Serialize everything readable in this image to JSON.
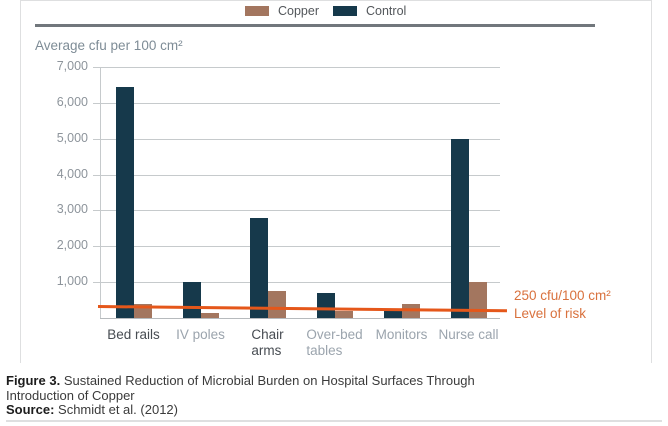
{
  "chart_data": {
    "type": "bar",
    "axis_title": "Average cfu per 100 cm²",
    "categories": [
      "Bed rails",
      "IV poles",
      "Chair\narms",
      "Over-bed\ntables",
      "Monitors",
      "Nurse call"
    ],
    "category_emphasis": [
      "dark",
      "light",
      "dark",
      "light",
      "light",
      "light"
    ],
    "series": [
      {
        "name": "Control",
        "color": "#16394b",
        "values": [
          6450,
          1000,
          2800,
          700,
          200,
          5000
        ]
      },
      {
        "name": "Copper",
        "color": "#a3765f",
        "values": [
          400,
          150,
          750,
          200,
          400,
          1000
        ]
      }
    ],
    "legend": [
      {
        "label": "Copper",
        "color": "#a3765f"
      },
      {
        "label": "Control",
        "color": "#16394b"
      }
    ],
    "legend_position": "top",
    "grid": true,
    "ylim": [
      0,
      7000
    ],
    "y_ticks": [
      {
        "value": 7000,
        "label": "7,000"
      },
      {
        "value": 6000,
        "label": "6,000"
      },
      {
        "value": 5000,
        "label": "5,000"
      },
      {
        "value": 4000,
        "label": "4,000"
      },
      {
        "value": 3000,
        "label": "3,000"
      },
      {
        "value": 2000,
        "label": "2,000"
      },
      {
        "value": 1000,
        "label": "1,000"
      }
    ],
    "risk_line": {
      "value": 250,
      "color": "#e5571a",
      "label_line1": "250 cfu/100 cm²",
      "label_line2": "Level of risk"
    }
  },
  "caption": {
    "figure_label": "Figure 3.",
    "title": "Sustained Reduction of Microbial Burden on Hospital Surfaces Through\nIntroduction of Copper",
    "source_label": "Source:",
    "source_text": "Schmidt et al. (2012)"
  }
}
